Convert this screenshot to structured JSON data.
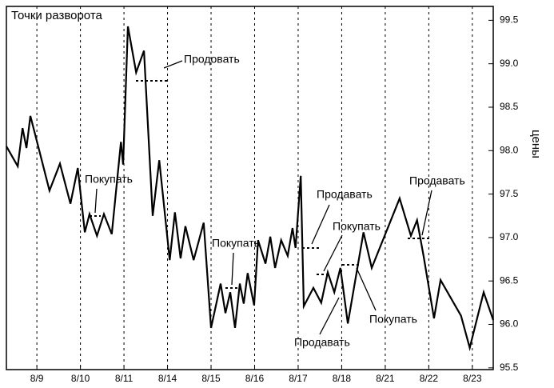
{
  "chart_data": {
    "type": "line",
    "title": "Точки разворота",
    "y_label": "цены",
    "x": [
      -0.7,
      -0.44,
      -0.33,
      -0.24,
      -0.15,
      0.02,
      0.29,
      0.53,
      0.77,
      0.94,
      1.1,
      1.21,
      1.38,
      1.54,
      1.72,
      1.93,
      1.98,
      2.09,
      2.28,
      2.46,
      2.66,
      2.81,
      3.05,
      3.17,
      3.3,
      3.41,
      3.6,
      3.83,
      4.0,
      4.22,
      4.33,
      4.44,
      4.55,
      4.66,
      4.75,
      4.84,
      4.99,
      5.08,
      5.25,
      5.36,
      5.47,
      5.61,
      5.76,
      5.87,
      5.94,
      6.06,
      6.13,
      6.35,
      6.53,
      6.68,
      6.83,
      6.97,
      7.05,
      7.14,
      7.5,
      7.69,
      8.33,
      8.59,
      8.73,
      8.88,
      9.12,
      9.27,
      9.74,
      9.94,
      10.26,
      10.48
    ],
    "values": [
      98.05,
      97.82,
      98.26,
      98.03,
      98.4,
      98.07,
      97.54,
      97.85,
      97.39,
      97.8,
      97.06,
      97.27,
      97.02,
      97.27,
      97.04,
      98.1,
      97.84,
      99.43,
      98.9,
      99.15,
      97.25,
      97.89,
      96.74,
      97.29,
      96.76,
      97.13,
      96.74,
      97.17,
      95.96,
      96.47,
      96.13,
      96.37,
      95.96,
      96.47,
      96.24,
      96.59,
      96.22,
      96.97,
      96.7,
      97.01,
      96.65,
      96.97,
      96.79,
      97.11,
      96.88,
      97.71,
      96.21,
      96.42,
      96.25,
      96.6,
      96.37,
      96.65,
      96.35,
      96.01,
      97.06,
      96.65,
      97.45,
      97.02,
      97.2,
      96.79,
      96.07,
      96.51,
      96.1,
      95.73,
      96.37,
      96.05
    ],
    "color": "#000000",
    "xlim": [
      -0.7,
      10.48
    ],
    "xticks": [
      {
        "value": 0,
        "label": "8/9"
      },
      {
        "value": 1,
        "label": "8/10"
      },
      {
        "value": 2,
        "label": "8/11"
      },
      {
        "value": 3,
        "label": "8/14"
      },
      {
        "value": 4,
        "label": "8/15"
      },
      {
        "value": 5,
        "label": "8/16"
      },
      {
        "value": 6,
        "label": "8/17"
      },
      {
        "value": 7,
        "label": "8/18"
      },
      {
        "value": 8,
        "label": "8/21"
      },
      {
        "value": 9,
        "label": "8/22"
      },
      {
        "value": 10,
        "label": "8/23"
      }
    ],
    "ylim": [
      95.48,
      99.66
    ],
    "yticks": [
      95.5,
      {
        "value": 96,
        "label": "96.0"
      },
      96.5,
      {
        "value": 97,
        "label": "97.0"
      },
      97.5,
      {
        "value": 98,
        "label": "98.0"
      },
      98.5,
      {
        "value": 99,
        "label": "99.0"
      },
      99.5
    ],
    "grid": true,
    "annotations": [
      "Продовать",
      "Покупать",
      "Покупать",
      "Продавать",
      "Покупать",
      "Продавать",
      "Продавать",
      "Покупать"
    ]
  }
}
